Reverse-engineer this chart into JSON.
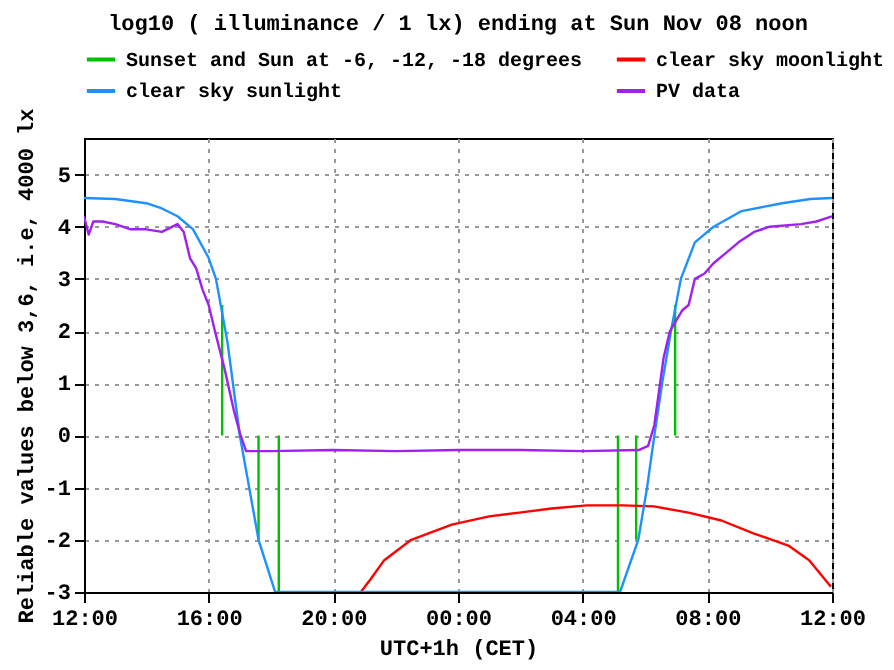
{
  "chart_data": {
    "type": "line",
    "title": "log10 ( illuminance / 1 lx) ending at Sun Nov 08 noon",
    "xlabel": "UTC+1h (CET)",
    "ylabel": "Reliable values below 3,6, i.e, 4000 lx",
    "xlim": [
      "--11-07T12:00",
      "--11-08T12:00"
    ],
    "xticks": [
      {
        "value": "--11-07T12:00",
        "label": "12:00"
      },
      {
        "value": "--11-07T16:00",
        "label": "16:00"
      },
      {
        "value": "--11-07T20:00",
        "label": "20:00"
      },
      {
        "value": "--11-08T00:00",
        "label": "00:00"
      },
      {
        "value": "--11-08T04:00",
        "label": "04:00"
      },
      {
        "value": "--11-08T08:00",
        "label": "08:00"
      },
      {
        "value": "--11-08T12:00",
        "label": "12:00"
      }
    ],
    "ylim": [
      -3,
      5.7
    ],
    "yticks": [
      -3,
      -2,
      -1,
      0,
      1,
      2,
      3,
      4,
      5
    ],
    "grid": true,
    "legend": "top",
    "line_style": "solid",
    "series": [
      {
        "name": "Sunset and Sun at -6, -12, -18 degrees",
        "color": "#00c000",
        "x": [
          "--11-07T16:26",
          "--11-07T16:26",
          null,
          "--11-07T17:36",
          "--11-07T17:36",
          null,
          "--11-07T18:15",
          "--11-07T18:15",
          null,
          "--11-08T05:08",
          "--11-08T05:08",
          null,
          "--11-08T05:43",
          "--11-08T05:43",
          null,
          "--11-08T06:58",
          "--11-08T06:58"
        ],
        "values": [
          0,
          2.5,
          null,
          0,
          -2,
          null,
          0,
          -3,
          null,
          0,
          -3,
          null,
          0,
          -2,
          null,
          0,
          2.5
        ]
      },
      {
        "name": "clear sky moonlight",
        "color": "#ff0000",
        "x": [
          "--11-07T20:53",
          "--11-07T21:12",
          "--11-07T21:38",
          "--11-07T22:30",
          "--11-07T23:48",
          "--11-08T01:00",
          "--11-08T01:58",
          "--11-08T03:00",
          "--11-08T04:08",
          "--11-08T05:18",
          "--11-08T06:17",
          "--11-08T07:24",
          "--11-08T08:27",
          "--11-08T09:30",
          "--11-08T10:36",
          "--11-08T11:16",
          "--11-08T11:58"
        ],
        "values": [
          -3,
          -2.75,
          -2.39,
          -2.0,
          -1.71,
          -1.55,
          -1.48,
          -1.4,
          -1.34,
          -1.34,
          -1.36,
          -1.48,
          -1.63,
          -1.88,
          -2.11,
          -2.39,
          -2.9
        ]
      },
      {
        "name": "clear sky sunlight",
        "color": "#1e90ff",
        "x": [
          "--11-07T12:00",
          "--11-07T13:00",
          "--11-07T14:00",
          "--11-07T14:30",
          "--11-07T15:00",
          "--11-07T15:30",
          "--11-07T16:00",
          "--11-07T16:14",
          "--11-07T16:36",
          "--11-07T17:00",
          "--11-07T17:18",
          "--11-07T17:36",
          "--11-07T18:08",
          "--11-08T05:12",
          "--11-08T05:47",
          "--11-08T06:04",
          "--11-08T06:18",
          "--11-08T06:33",
          "--11-08T06:50",
          "--11-08T07:09",
          "--11-08T07:36",
          "--11-08T08:12",
          "--11-08T09:06",
          "--11-08T10:24",
          "--11-08T11:18",
          "--11-08T12:00"
        ],
        "values": [
          4.55,
          4.53,
          4.45,
          4.35,
          4.2,
          3.95,
          3.4,
          3,
          1.8,
          0,
          -1,
          -2,
          -3,
          -3,
          -2,
          -1,
          0,
          1,
          2,
          3,
          3.7,
          4,
          4.3,
          4.45,
          4.53,
          4.55
        ]
      },
      {
        "name": "PV data",
        "color": "#a020f0",
        "x": [
          "--11-07T12:00",
          "--11-07T12:09",
          "--11-07T12:18",
          "--11-07T12:36",
          "--11-07T13:00",
          "--11-07T13:30",
          "--11-07T14:00",
          "--11-07T14:30",
          "--11-07T15:00",
          "--11-07T15:12",
          "--11-07T15:24",
          "--11-07T15:36",
          "--11-07T15:48",
          "--11-07T16:00",
          "--11-07T16:12",
          "--11-07T16:30",
          "--11-07T16:48",
          "--11-07T17:00",
          "--11-07T17:12",
          "--11-07T18:00",
          "--11-07T20:00",
          "--11-07T22:00",
          "--11-08T00:00",
          "--11-08T02:00",
          "--11-08T04:00",
          "--11-08T05:48",
          "--11-08T06:06",
          "--11-08T06:18",
          "--11-08T06:36",
          "--11-08T06:48",
          "--11-08T07:00",
          "--11-08T07:12",
          "--11-08T07:24",
          "--11-08T07:36",
          "--11-08T07:54",
          "--11-08T08:12",
          "--11-08T08:36",
          "--11-08T09:00",
          "--11-08T09:30",
          "--11-08T10:00",
          "--11-08T11:00",
          "--11-08T11:30",
          "--11-08T12:00"
        ],
        "values": [
          4.2,
          3.85,
          4.1,
          4.1,
          4.05,
          3.95,
          3.95,
          3.9,
          4.05,
          3.9,
          3.4,
          3.2,
          2.8,
          2.5,
          2.0,
          1.3,
          0.5,
          0.05,
          -0.3,
          -0.3,
          -0.28,
          -0.3,
          -0.28,
          -0.28,
          -0.3,
          -0.28,
          -0.2,
          0.2,
          1.5,
          2.0,
          2.2,
          2.4,
          2.5,
          3.0,
          3.1,
          3.3,
          3.5,
          3.7,
          3.9,
          4.0,
          4.05,
          4.1,
          4.2
        ]
      }
    ]
  }
}
